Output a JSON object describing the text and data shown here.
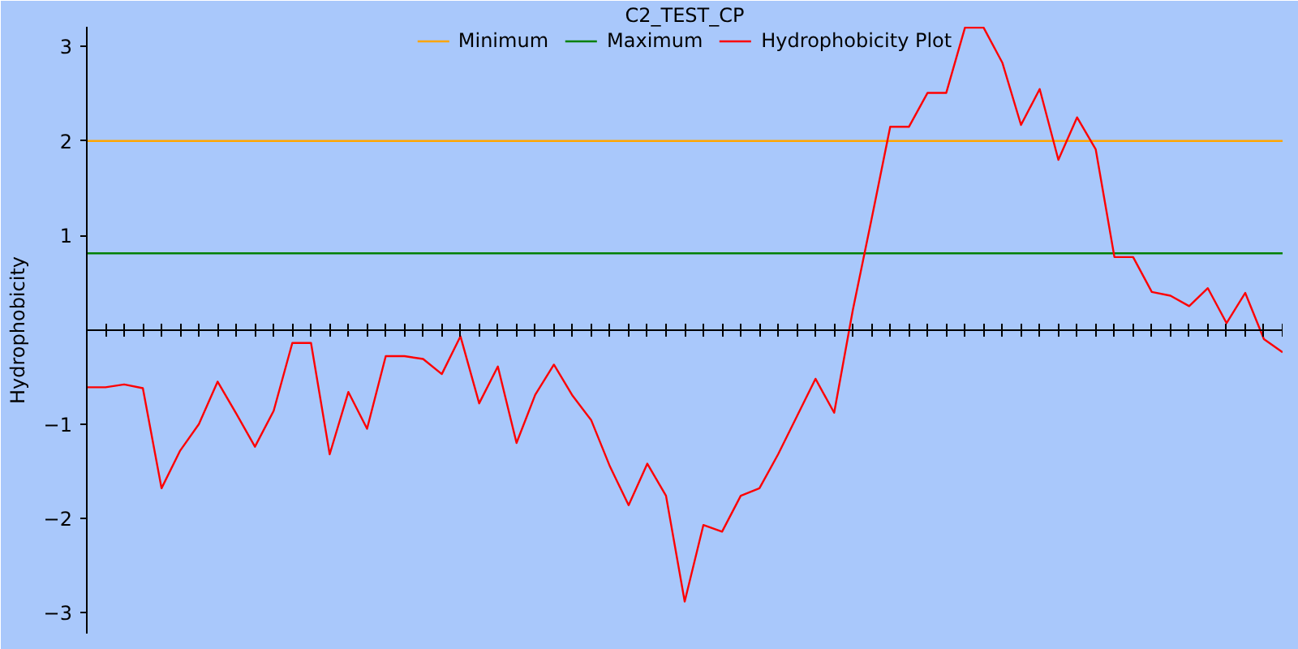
{
  "chart_data": {
    "type": "line",
    "title": "C2_TEST_CP",
    "ylabel": "Hydrophobicity",
    "categories": [
      null,
      null,
      null,
      null,
      null,
      null,
      null,
      null,
      null,
      null,
      null,
      null,
      null,
      null,
      null,
      null,
      null,
      null,
      null,
      null,
      null,
      null,
      null,
      null,
      null,
      null,
      null,
      null,
      null,
      null,
      null,
      null,
      null,
      null,
      null,
      null,
      null,
      null,
      null,
      null,
      null,
      null,
      null,
      null,
      null,
      null,
      null,
      null,
      null,
      null,
      null,
      null,
      null,
      null,
      null,
      null,
      null,
      null,
      null,
      null,
      null,
      null,
      null,
      null,
      null
    ],
    "series": [
      {
        "name": "Minimum",
        "color": "#ffa500",
        "values": [
          2,
          2,
          2,
          2,
          2,
          2,
          2,
          2,
          2,
          2,
          2,
          2,
          2,
          2,
          2,
          2,
          2,
          2,
          2,
          2,
          2,
          2,
          2,
          2,
          2,
          2,
          2,
          2,
          2,
          2,
          2,
          2,
          2,
          2,
          2,
          2,
          2,
          2,
          2,
          2,
          2,
          2,
          2,
          2,
          2,
          2,
          2,
          2,
          2,
          2,
          2,
          2,
          2,
          2,
          2,
          2,
          2,
          2,
          2,
          2,
          2,
          2,
          2,
          2,
          2
        ]
      },
      {
        "name": "Maximum",
        "color": "#008000",
        "values": [
          0.81,
          0.81,
          0.81,
          0.81,
          0.81,
          0.81,
          0.81,
          0.81,
          0.81,
          0.81,
          0.81,
          0.81,
          0.81,
          0.81,
          0.81,
          0.81,
          0.81,
          0.81,
          0.81,
          0.81,
          0.81,
          0.81,
          0.81,
          0.81,
          0.81,
          0.81,
          0.81,
          0.81,
          0.81,
          0.81,
          0.81,
          0.81,
          0.81,
          0.81,
          0.81,
          0.81,
          0.81,
          0.81,
          0.81,
          0.81,
          0.81,
          0.81,
          0.81,
          0.81,
          0.81,
          0.81,
          0.81,
          0.81,
          0.81,
          0.81,
          0.81,
          0.81,
          0.81,
          0.81,
          0.81,
          0.81,
          0.81,
          0.81,
          0.81,
          0.81,
          0.81,
          0.81,
          0.81,
          0.81,
          0.81
        ]
      },
      {
        "name": "Hydrophobicity Plot",
        "color": "#ff0000",
        "values": [
          -0.61,
          -0.61,
          -0.58,
          -0.62,
          -1.68,
          -1.28,
          -1.0,
          -0.55,
          -0.89,
          -1.24,
          -0.86,
          -0.14,
          -0.14,
          -1.32,
          -0.66,
          -1.05,
          -0.28,
          -0.28,
          -0.31,
          -0.47,
          -0.07,
          -0.78,
          -0.39,
          -1.2,
          -0.69,
          -0.37,
          -0.7,
          -0.96,
          -1.45,
          -1.86,
          -1.42,
          -1.76,
          -2.88,
          -2.07,
          -2.14,
          -1.76,
          -1.68,
          -1.32,
          -0.92,
          -0.52,
          -0.88,
          0.21,
          1.17,
          2.15,
          2.15,
          2.51,
          2.51,
          3.2,
          3.2,
          2.83,
          2.17,
          2.55,
          1.8,
          2.25,
          1.91,
          0.77,
          0.77,
          0.4,
          0.36,
          0.25,
          0.44,
          0.07,
          0.39,
          -0.1,
          -0.24
        ]
      }
    ],
    "ylim": [
      -3.22,
      3.21
    ],
    "yticks": [
      -3,
      -2,
      -1,
      1,
      2,
      3
    ],
    "tick_labels": "y",
    "legend": "top",
    "marker": "none"
  }
}
